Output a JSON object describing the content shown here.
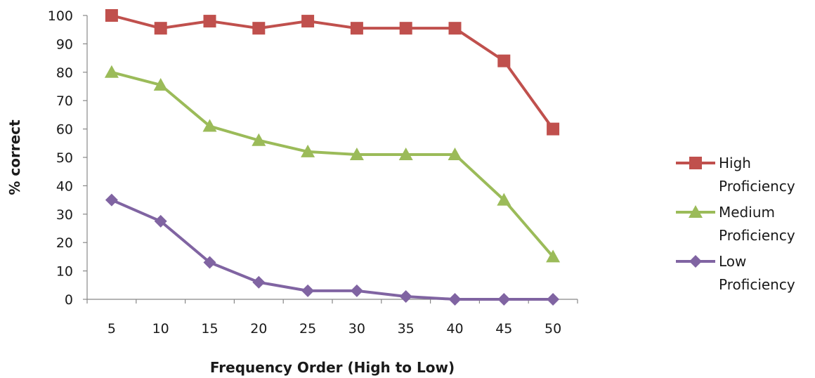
{
  "chart_data": {
    "type": "line",
    "title": "",
    "xlabel": "Frequency Order (High to Low)",
    "ylabel": "% correct",
    "categories": [
      "5",
      "10",
      "15",
      "20",
      "25",
      "30",
      "35",
      "40",
      "45",
      "50"
    ],
    "ylim": [
      0,
      100
    ],
    "yticks": [
      0,
      10,
      20,
      30,
      40,
      50,
      60,
      70,
      80,
      90,
      100
    ],
    "grid": false,
    "legend_position": "right",
    "series": [
      {
        "name": "High Proficiency",
        "legend_lines": [
          "High",
          "Proficiency"
        ],
        "color": "#c0504d",
        "marker": "square",
        "values": [
          100,
          95.5,
          98,
          95.5,
          98,
          95.5,
          95.5,
          95.5,
          84,
          60
        ]
      },
      {
        "name": "Medium Proficiency",
        "legend_lines": [
          "Medium",
          "Proficiency"
        ],
        "color": "#9bbb59",
        "marker": "triangle",
        "values": [
          80,
          75.5,
          61,
          56,
          52,
          51,
          51,
          51,
          35,
          15
        ]
      },
      {
        "name": "Low Proficiency",
        "legend_lines": [
          "Low",
          "Proficiency"
        ],
        "color": "#8064a2",
        "marker": "diamond",
        "values": [
          35,
          27.5,
          13,
          6,
          3,
          3,
          1,
          0,
          0,
          0
        ]
      }
    ]
  }
}
